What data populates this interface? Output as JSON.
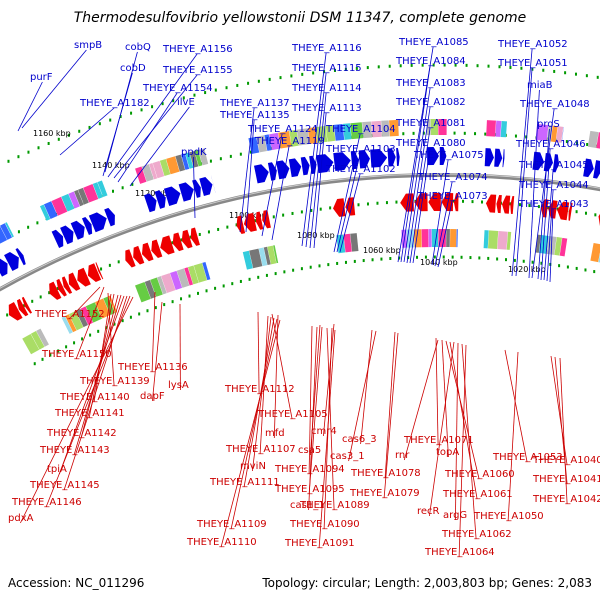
{
  "title": "Thermodesulfovibrio yellowstonii DSM 11347, complete genome",
  "footer": {
    "accession": "Accession: NC_011296",
    "stats": "Topology: circular; Length: 2,003,803 bp; Genes: 2,083"
  },
  "colors": {
    "forward_strand": "#0000dd",
    "reverse_strand": "#ee0000",
    "backbone": "#888888",
    "tick_marks": "#009900"
  },
  "kbp_ticks": [
    "1160 kbp",
    "1140 kbp",
    "1120 kbp",
    "1100 kbp",
    "1080 kbp",
    "1060 kbp",
    "1040 kbp",
    "1020 kbp"
  ],
  "forward_labels": [
    "smpB",
    "purF",
    "cobQ",
    "cobD",
    "THEYE_A1156",
    "THEYE_A1155",
    "THEYE_A1154",
    "ilvE",
    "THEYE_A1182",
    "ppdK",
    "THEYE_A1137",
    "THEYE_A1135",
    "THEYE_A1124",
    "THEYE_A1119",
    "THEYE_A1116",
    "THEYE_A1115",
    "THEYE_A1114",
    "THEYE_A1113",
    "THEYE_A1104",
    "THEYE_A1103",
    "THEYE_A1102",
    "THEYE_A1085",
    "THEYE_A1084",
    "THEYE_A1083",
    "THEYE_A1082",
    "THEYE_A1081",
    "THEYE_A1080",
    "THEYE_A1075",
    "THEYE_A1074",
    "THEYE_A1073",
    "THEYE_A1052",
    "THEYE_A1051",
    "miaB",
    "THEYE_A1048",
    "proS",
    "THEYE_A1046",
    "THEYE_A1045",
    "THEYE_A1044",
    "THEYE_A1043"
  ],
  "reverse_labels": [
    "THEYE_A1152",
    "THEYE_A1150",
    "THEYE_A1136",
    "THEYE_A1139",
    "THEYE_A1140",
    "THEYE_A1141",
    "THEYE_A1142",
    "THEYE_A1143",
    "tpiA",
    "THEYE_A1145",
    "THEYE_A1146",
    "pdxA",
    "dapF",
    "lysA",
    "THEYE_A1112",
    "THEYE_A1105",
    "mfd",
    "THEYE_A1107",
    "mviN",
    "THEYE_A1111",
    "THEYE_A1109",
    "THEYE_A1110",
    "csa5",
    "cmr4",
    "THEYE_A1094",
    "cas1_1",
    "THEYE_A1095",
    "THEYE_A1089",
    "THEYE_A1090",
    "THEYE_A1091",
    "cas6_3",
    "cas3_1",
    "THEYE_A1078",
    "THEYE_A1079",
    "THEYE_A1071",
    "rnr",
    "topA",
    "THEYE_A1060",
    "THEYE_A1061",
    "recR",
    "argG",
    "THEYE_A1062",
    "THEYE_A1064",
    "THEYE_A1053",
    "THEYE_A1050",
    "THEYE_A1040",
    "THEYE_A1041",
    "THEYE_A1042"
  ]
}
